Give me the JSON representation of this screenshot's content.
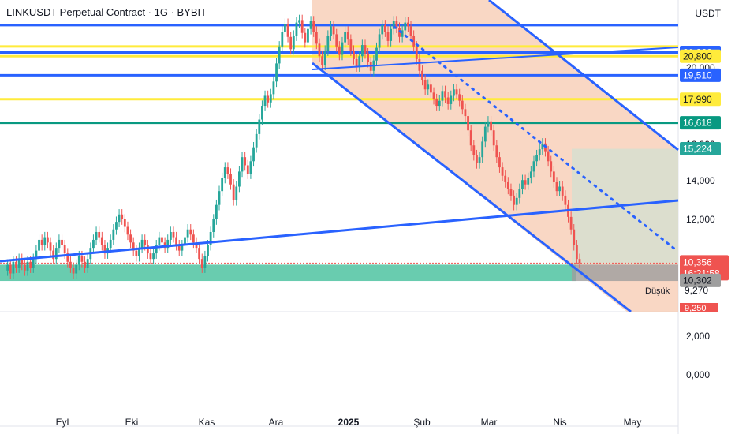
{
  "header": {
    "title": "LINKUSDT Perpetual Contract · 1G · BYBIT",
    "currency": "USDT"
  },
  "colors": {
    "up": "#26a69a",
    "down": "#ef5350",
    "blue_line": "#2962ff",
    "yellow_line": "#ffeb3b",
    "green_line": "#089981",
    "channel_fill": "#f7c9b0",
    "target_box": "#d8dfcf",
    "support_zone": "#4fc3a1",
    "axis_text": "#131722"
  },
  "chart_data": {
    "type": "candlestick",
    "y_scale": "log",
    "ylim": [
      6.9,
      23.5
    ],
    "x_ticks": [
      "Eyl",
      "Eki",
      "Kas",
      "Ara",
      "2025",
      "Şub",
      "Mar",
      "Nis",
      "May"
    ],
    "y_ticks": [
      "20,000",
      "16,000",
      "14,000",
      "12,000",
      "2,000",
      "0,000"
    ],
    "horizontal_levels": [
      {
        "value": "21,066",
        "kind": "blue"
      },
      {
        "value": "20,800",
        "kind": "yellow"
      },
      {
        "value": "19,510",
        "kind": "blue"
      },
      {
        "value": "17,990",
        "kind": "yellow"
      },
      {
        "value": "16,618",
        "kind": "green"
      },
      {
        "value": "15,224",
        "kind": "target"
      }
    ],
    "untitled_levels": [
      23.1,
      21.5
    ],
    "last_price": {
      "value": "10,356",
      "countdown": "16:21:58"
    },
    "support_price": "10,302",
    "low": {
      "label": "Düşük",
      "value": "9,270",
      "value2": "9,250"
    },
    "support_zone": [
      9.75,
      10.3
    ],
    "series": [
      {
        "name": "",
        "values": [
          10.1,
          10.3,
          10.0,
          10.4,
          10.2,
          10.5,
          10.3,
          10.1,
          10.4,
          10.2,
          10.5,
          10.8,
          11.2,
          11.0,
          11.3,
          11.1,
          10.8,
          10.5,
          10.9,
          11.2,
          11.0,
          10.7,
          10.4,
          10.2,
          10.0,
          10.3,
          10.6,
          10.4,
          10.2,
          10.5,
          10.9,
          11.2,
          11.5,
          11.3,
          11.0,
          10.7,
          10.9,
          11.2,
          11.6,
          11.9,
          12.2,
          12.0,
          11.7,
          11.4,
          11.1,
          10.8,
          10.6,
          10.9,
          11.2,
          11.0,
          10.7,
          10.5,
          10.7,
          11.0,
          11.3,
          11.1,
          10.9,
          11.2,
          11.5,
          11.3,
          11.0,
          10.8,
          11.0,
          11.3,
          11.6,
          11.4,
          11.1,
          10.9,
          10.5,
          10.2,
          10.6,
          11.0,
          11.5,
          12.0,
          12.6,
          13.2,
          13.8,
          14.3,
          14.0,
          13.5,
          12.8,
          13.4,
          14.1,
          14.8,
          14.4,
          14.0,
          14.6,
          15.3,
          16.0,
          16.8,
          17.6,
          18.2,
          17.8,
          18.3,
          19.1,
          20.3,
          21.5,
          22.6,
          23.2,
          22.2,
          21.3,
          22.3,
          23.3,
          23.5,
          22.5,
          21.8,
          22.8,
          23.4,
          22.6,
          21.7,
          20.8,
          20.2,
          21.2,
          22.3,
          23.0,
          22.4,
          21.5,
          20.9,
          21.8,
          22.6,
          22.0,
          21.2,
          20.6,
          20.1,
          20.8,
          21.6,
          21.0,
          20.4,
          19.8,
          20.5,
          21.4,
          22.4,
          23.1,
          22.6,
          21.9,
          22.8,
          23.4,
          22.9,
          22.2,
          22.7,
          23.3,
          23.0,
          22.3,
          21.5,
          20.6,
          19.8,
          19.2,
          18.6,
          18.9,
          18.4,
          18.0,
          17.6,
          17.9,
          18.5,
          18.1,
          17.7,
          18.2,
          18.6,
          18.3,
          17.9,
          17.4,
          17.0,
          16.2,
          15.4,
          14.9,
          14.5,
          14.8,
          15.6,
          16.4,
          16.7,
          16.2,
          15.4,
          14.8,
          14.3,
          13.9,
          13.6,
          13.3,
          13.0,
          12.6,
          12.9,
          13.3,
          13.7,
          13.5,
          13.8,
          14.1,
          14.6,
          14.9,
          15.2,
          15.5,
          15.1,
          14.6,
          14.1,
          13.6,
          13.2,
          13.4,
          13.0,
          12.6,
          12.1,
          11.6,
          11.0,
          10.5,
          10.36
        ]
      }
    ]
  }
}
